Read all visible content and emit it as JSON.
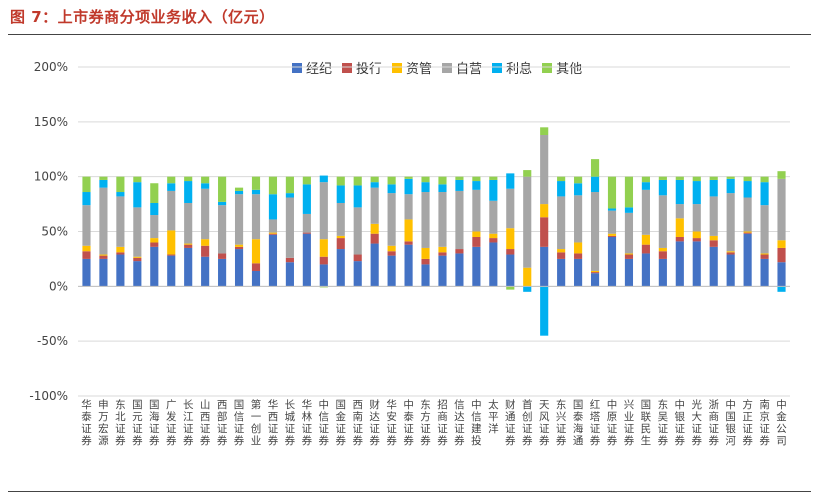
{
  "figure_title": "图 7：上市券商分项业务收入（亿元）",
  "colors": {
    "title": "#c0392b"
  },
  "chart_data": {
    "type": "bar",
    "stacked": true,
    "y_axis": {
      "min": -100,
      "max": 200,
      "ticks": [
        -100,
        -50,
        0,
        50,
        100,
        150,
        200
      ],
      "tick_format": "percent"
    },
    "grid": "horizontal",
    "legend_position": "top",
    "categories": [
      "华泰证券",
      "申万宏源",
      "东北证券",
      "国元证券",
      "国海证券",
      "广发证券",
      "长江证券",
      "山西证券",
      "西部证券",
      "国信证券",
      "第一创业",
      "华西证券",
      "长城证券",
      "华林证券",
      "中信证券",
      "国金证券",
      "西南证券",
      "财达证券",
      "华安证券",
      "中泰证券",
      "东方证券",
      "招商证券",
      "信达证券",
      "中信建投",
      "太平洋",
      "财通证券",
      "首创证券",
      "天风证券",
      "东兴证券",
      "国泰海通",
      "红塔证券",
      "中原证券",
      "兴业证券",
      "国联民生",
      "东吴证券",
      "中银证券",
      "光大证券",
      "浙商证券",
      "中国银河",
      "方正证券",
      "南京证券",
      "中金公司"
    ],
    "series": [
      {
        "name": "经纪",
        "color": "#4472c4",
        "values": [
          25,
          25,
          29,
          23,
          36,
          28,
          35,
          27,
          25,
          34,
          14,
          47,
          22,
          48,
          20,
          34,
          23,
          39,
          28,
          38,
          20,
          28,
          30,
          36,
          40,
          29,
          0,
          36,
          25,
          25,
          12,
          45,
          25,
          30,
          25,
          41,
          41,
          36,
          29,
          48,
          25,
          22
        ]
      },
      {
        "name": "投行",
        "color": "#c0504d",
        "values": [
          7,
          3,
          2,
          3,
          4,
          1,
          3,
          10,
          5,
          2,
          7,
          1,
          4,
          1,
          7,
          10,
          6,
          9,
          4,
          3,
          5,
          3,
          4,
          9,
          4,
          5,
          0,
          27,
          6,
          5,
          1,
          1,
          4,
          8,
          7,
          4,
          3,
          6,
          2,
          1,
          4,
          13
        ]
      },
      {
        "name": "资管",
        "color": "#ffc000",
        "values": [
          5,
          1,
          5,
          1,
          4,
          22,
          1,
          6,
          0,
          2,
          22,
          1,
          0,
          0,
          16,
          2,
          0,
          9,
          5,
          20,
          10,
          5,
          0,
          5,
          4,
          19,
          17,
          12,
          3,
          10,
          1,
          2,
          1,
          9,
          3,
          17,
          6,
          4,
          1,
          1,
          1,
          7
        ]
      },
      {
        "name": "自营",
        "color": "#a6a6a6",
        "values": [
          37,
          61,
          46,
          45,
          21,
          36,
          37,
          46,
          44,
          46,
          41,
          12,
          55,
          17,
          52,
          30,
          43,
          33,
          48,
          23,
          51,
          50,
          53,
          38,
          30,
          36,
          83,
          63,
          48,
          43,
          72,
          21,
          37,
          41,
          48,
          13,
          25,
          36,
          53,
          31,
          44,
          56
        ]
      },
      {
        "name": "利息",
        "color": "#00b0f0",
        "values": [
          12,
          7,
          4,
          23,
          11,
          7,
          20,
          5,
          3,
          3,
          4,
          23,
          4,
          27,
          6,
          16,
          20,
          5,
          8,
          14,
          9,
          7,
          10,
          8,
          19,
          14,
          -5,
          -45,
          14,
          11,
          14,
          2,
          5,
          7,
          14,
          22,
          21,
          15,
          13,
          15,
          21,
          -5
        ]
      },
      {
        "name": "其他",
        "color": "#92d050",
        "values": [
          14,
          3,
          14,
          5,
          18,
          6,
          4,
          6,
          23,
          3,
          12,
          16,
          15,
          7,
          -1,
          8,
          8,
          5,
          7,
          2,
          5,
          7,
          3,
          4,
          3,
          -3,
          6,
          7,
          4,
          6,
          16,
          29,
          28,
          5,
          3,
          3,
          4,
          3,
          2,
          4,
          5,
          7
        ]
      }
    ]
  }
}
